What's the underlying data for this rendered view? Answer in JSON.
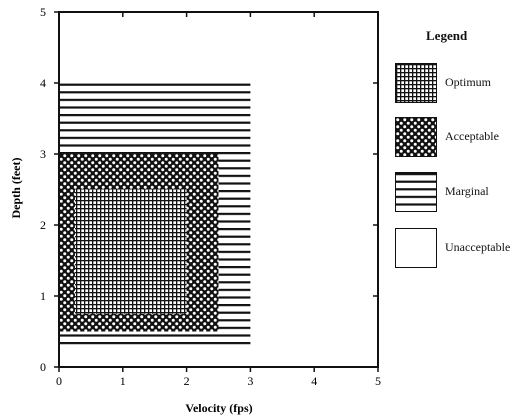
{
  "chart_data": {
    "type": "heatmap",
    "xlabel": "Velocity (fps)",
    "ylabel": "Depth (feet)",
    "xlim": [
      0,
      5
    ],
    "ylim": [
      0,
      5
    ],
    "x_ticks": [
      "0",
      "1",
      "2",
      "3",
      "4",
      "5"
    ],
    "y_ticks": [
      "0",
      "1",
      "2",
      "3",
      "4",
      "5"
    ],
    "grid": false,
    "legend_title": "Legend",
    "legend_placement": "right",
    "categories": [
      {
        "name": "Optimum",
        "pattern": "fine-grid"
      },
      {
        "name": "Acceptable",
        "pattern": "dots"
      },
      {
        "name": "Marginal",
        "pattern": "horizontal-lines"
      },
      {
        "name": "Unacceptable",
        "pattern": "blank"
      }
    ],
    "regions": [
      {
        "category": "Marginal",
        "x": [
          0,
          3
        ],
        "y": [
          0.25,
          4.0
        ]
      },
      {
        "category": "Acceptable",
        "x": [
          0,
          2.5
        ],
        "y": [
          0.5,
          3.0
        ]
      },
      {
        "category": "Optimum",
        "x": [
          0.25,
          2.0
        ],
        "y": [
          0.75,
          2.5
        ]
      }
    ]
  }
}
